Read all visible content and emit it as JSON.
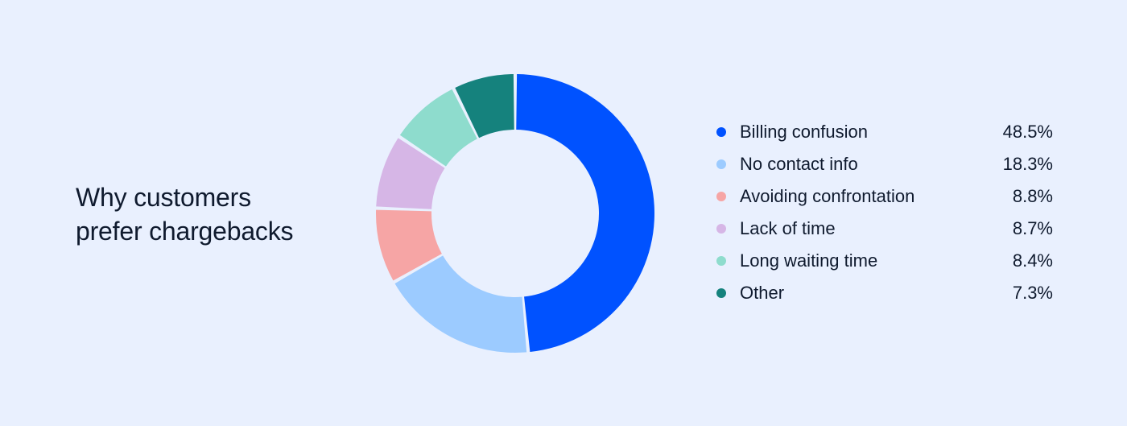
{
  "chart_data": {
    "type": "pie",
    "title": "Why customers prefer chargebacks",
    "title_lines": [
      "Why customers",
      "prefer chargebacks"
    ],
    "categories": [
      "Billing confusion",
      "No contact info",
      "Avoiding confrontation",
      "Lack of time",
      "Long waiting time",
      "Other"
    ],
    "values": [
      48.5,
      18.3,
      8.8,
      8.7,
      8.4,
      7.3
    ],
    "value_labels": [
      "48.5%",
      "18.3%",
      "8.8%",
      "8.7%",
      "8.4%",
      "7.3%"
    ],
    "colors": [
      "#0052ff",
      "#9ccbff",
      "#f6a5a5",
      "#d6b6e6",
      "#8edccd",
      "#15827d"
    ],
    "style": "donut",
    "legend_position": "right"
  }
}
